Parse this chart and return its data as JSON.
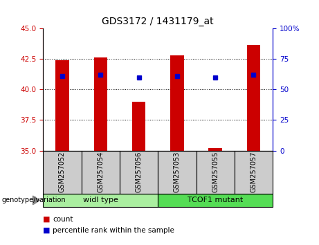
{
  "title": "GDS3172 / 1431179_at",
  "samples": [
    "GSM257052",
    "GSM257054",
    "GSM257056",
    "GSM257053",
    "GSM257055",
    "GSM257057"
  ],
  "count_values": [
    42.4,
    42.6,
    39.0,
    42.8,
    35.2,
    43.6
  ],
  "percentile_values": [
    41.1,
    41.2,
    41.0,
    41.1,
    41.0,
    41.2
  ],
  "ylim_left": [
    35,
    45
  ],
  "ylim_right": [
    0,
    100
  ],
  "yticks_left": [
    35,
    37.5,
    40,
    42.5,
    45
  ],
  "yticks_right": [
    0,
    25,
    50,
    75,
    100
  ],
  "bar_bottom": 35,
  "bar_color": "#cc0000",
  "dot_color": "#0000cc",
  "groups": [
    {
      "label": "widl type",
      "indices": [
        0,
        1,
        2
      ],
      "color": "#aaeea0"
    },
    {
      "label": "TCOF1 mutant",
      "indices": [
        3,
        4,
        5
      ],
      "color": "#55dd55"
    }
  ],
  "group_label": "genotype/variation",
  "legend_count": "count",
  "legend_percentile": "percentile rank within the sample",
  "title_fontsize": 10,
  "tick_fontsize": 7.5,
  "sample_fontsize": 7,
  "group_fontsize": 8
}
